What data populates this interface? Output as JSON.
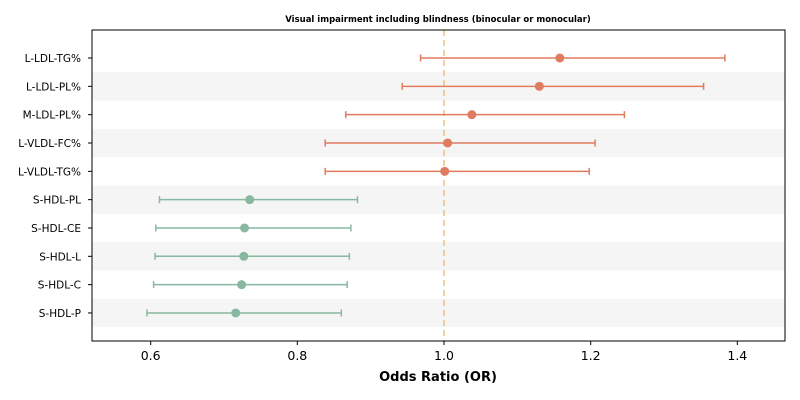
{
  "chart_data": {
    "type": "forest",
    "title": "Visual impairment including blindness (binocular or monocular)",
    "xlabel": "Odds Ratio (OR)",
    "ylabel": "",
    "xlim": [
      0.52,
      1.465
    ],
    "xticks": [
      0.6,
      0.8,
      1.0,
      1.2,
      1.4
    ],
    "xtick_labels": [
      "0.6",
      "0.8",
      "1.0",
      "1.2",
      "1.4"
    ],
    "reference_line": 1.0,
    "alternating_row_shading": true,
    "colors": {
      "risk": "#e07b5f",
      "protective": "#88b8a0",
      "reference_line": "#f0c27b",
      "row_band": "#f5f5f5"
    },
    "rows": [
      {
        "label": "L-LDL-TG%",
        "or": 1.158,
        "lower": 0.968,
        "upper": 1.383,
        "group": "risk"
      },
      {
        "label": "L-LDL-PL%",
        "or": 1.13,
        "lower": 0.943,
        "upper": 1.354,
        "group": "risk"
      },
      {
        "label": "M-LDL-PL%",
        "or": 1.038,
        "lower": 0.866,
        "upper": 1.246,
        "group": "risk"
      },
      {
        "label": "L-VLDL-FC%",
        "or": 1.005,
        "lower": 0.838,
        "upper": 1.206,
        "group": "risk"
      },
      {
        "label": "L-VLDL-TG%",
        "or": 1.001,
        "lower": 0.838,
        "upper": 1.198,
        "group": "risk"
      },
      {
        "label": "S-HDL-PL",
        "or": 0.735,
        "lower": 0.612,
        "upper": 0.882,
        "group": "protective"
      },
      {
        "label": "S-HDL-CE",
        "or": 0.728,
        "lower": 0.607,
        "upper": 0.873,
        "group": "protective"
      },
      {
        "label": "S-HDL-L",
        "or": 0.727,
        "lower": 0.606,
        "upper": 0.871,
        "group": "protective"
      },
      {
        "label": "S-HDL-C",
        "or": 0.724,
        "lower": 0.604,
        "upper": 0.868,
        "group": "protective"
      },
      {
        "label": "S-HDL-P",
        "or": 0.716,
        "lower": 0.595,
        "upper": 0.86,
        "group": "protective"
      }
    ]
  }
}
